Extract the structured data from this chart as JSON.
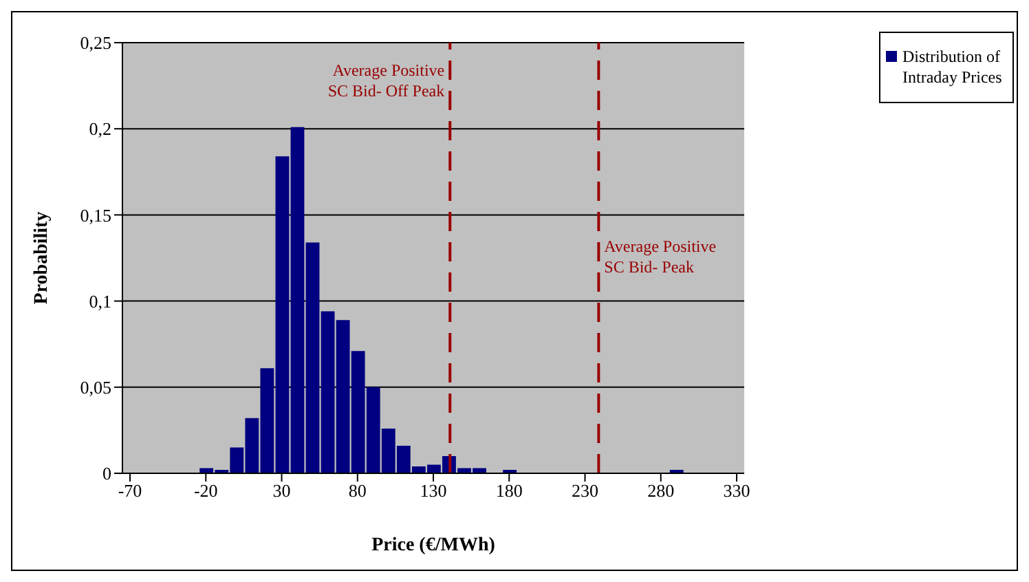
{
  "chart_data": {
    "type": "histogram",
    "xlabel": "Price (€/MWh)",
    "ylabel": "Probability",
    "bins": [
      -75,
      -65,
      -55,
      -45,
      -35,
      -25,
      -15,
      -5,
      5,
      15,
      25,
      35,
      45,
      55,
      65,
      75,
      85,
      95,
      105,
      115,
      125,
      135,
      145,
      155,
      165,
      175,
      185,
      195,
      205,
      215,
      225,
      235,
      245,
      255,
      265,
      275,
      285,
      295,
      305,
      315,
      325,
      335
    ],
    "series": [
      {
        "name": "Distribution of Intraday Prices",
        "color": "#000080",
        "values": [
          0,
          0,
          0,
          0,
          0,
          0.003,
          0.002,
          0.015,
          0.032,
          0.061,
          0.184,
          0.201,
          0.134,
          0.094,
          0.089,
          0.071,
          0.05,
          0.026,
          0.016,
          0.004,
          0.005,
          0.01,
          0.003,
          0.003,
          0,
          0.002,
          0,
          0,
          0,
          0,
          0,
          0,
          0,
          0,
          0,
          0,
          0.002,
          0,
          0,
          0,
          0
        ]
      }
    ],
    "xlim": [
      -75,
      335
    ],
    "xticks": [
      -70,
      -20,
      30,
      80,
      130,
      180,
      230,
      280,
      330
    ],
    "ylim": [
      0,
      0.25
    ],
    "yticks": [
      0,
      {
        "value": 0.05,
        "label": "0,05"
      },
      {
        "value": 0.1,
        "label": "0,1"
      },
      {
        "value": 0.15,
        "label": "0,15"
      },
      {
        "value": 0.2,
        "label": "0,2"
      },
      {
        "value": 0.25,
        "label": "0,25"
      }
    ],
    "ref_lines": [
      {
        "axis": "x",
        "value": 141,
        "label": "Average Positive SC Bid- Off Peak",
        "color": "#990000",
        "line_style": "dashed"
      },
      {
        "axis": "x",
        "value": 239,
        "label": "Average Positive SC Bid- Peak",
        "color": "#990000",
        "line_style": "dashed"
      }
    ],
    "grid": "y",
    "legend": "top right"
  }
}
